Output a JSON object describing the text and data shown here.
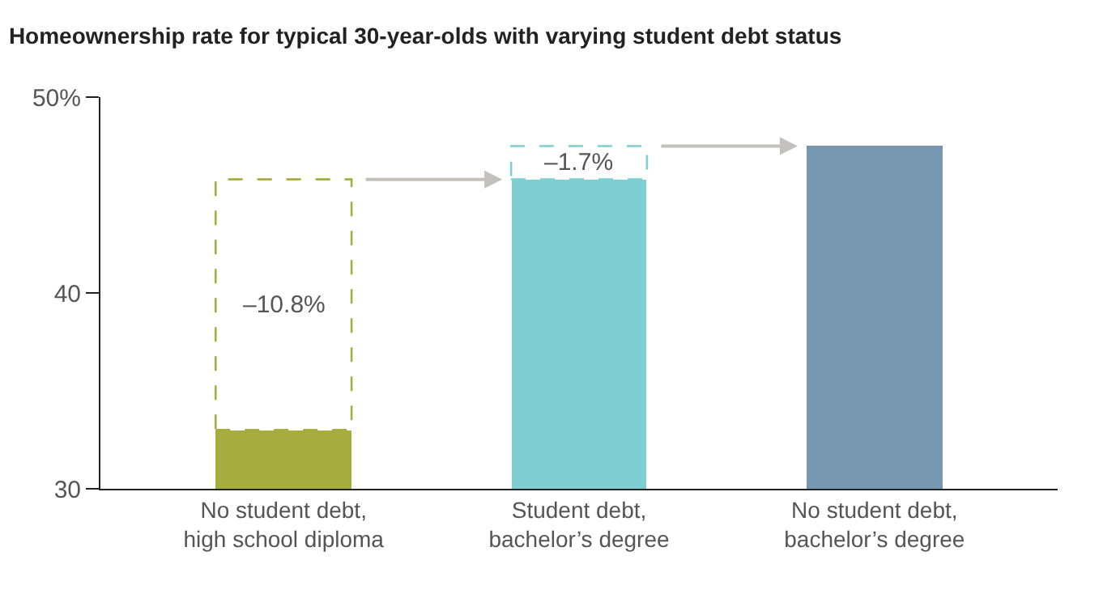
{
  "chart_data": {
    "type": "bar",
    "title": "Homeownership rate for typical 30-year-olds with varying student debt status",
    "categories": [
      "No student debt,\nhigh school diploma",
      "Student debt,\nbachelor’s degree",
      "No student debt,\nbachelor’s degree"
    ],
    "series": [
      {
        "colors": [
          "#a5ad3f",
          "#7fcfd2",
          "#7898b2"
        ],
        "values": [
          33.0,
          45.8,
          47.5
        ]
      },
      {
        "colors": [
          "#a5ad3f",
          "#7fcfd2",
          null
        ],
        "base": [
          33.0,
          45.8,
          null
        ],
        "values": [
          12.8,
          1.7,
          null
        ],
        "line_style": "dashed"
      }
    ],
    "annotations": [
      "–10.8%",
      "–1.7%"
    ],
    "ylim": [
      30,
      50
    ],
    "yticks": [
      {
        "value": 50,
        "label": "50%"
      },
      40,
      30
    ]
  }
}
